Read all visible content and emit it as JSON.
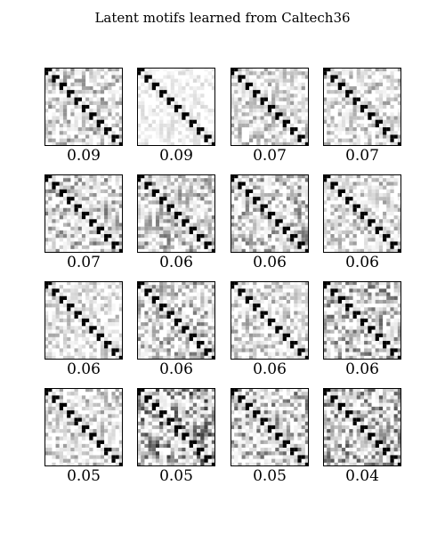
{
  "chart_data": {
    "type": "heatmap",
    "title": "Latent motifs learned from Caltech36",
    "n": 21,
    "colormap": "grayscale (white = 0, black = 1)",
    "grid": {
      "rows": 4,
      "cols": 4
    },
    "panel_values": [
      "0.09",
      "0.09",
      "0.07",
      "0.07",
      "0.07",
      "0.06",
      "0.06",
      "0.06",
      "0.06",
      "0.06",
      "0.06",
      "0.06",
      "0.05",
      "0.05",
      "0.05",
      "0.04"
    ],
    "panels": [
      {
        "value": "0.09",
        "offdiagonal": "near-diagonal band on sub/super diagonals, light",
        "density": 0.35
      },
      {
        "value": "0.09",
        "offdiagonal": "sparse very light gray background",
        "density": 0.12
      },
      {
        "value": "0.07",
        "offdiagonal": "dark cluster in lower-right",
        "density": 0.3
      },
      {
        "value": "0.07",
        "offdiagonal": "dark cluster upper-left and middle",
        "density": 0.3
      },
      {
        "value": "0.07",
        "offdiagonal": "dark blocks center-right",
        "density": 0.4
      },
      {
        "value": "0.06",
        "offdiagonal": "dark cluster upper-center",
        "density": 0.4
      },
      {
        "value": "0.06",
        "offdiagonal": "dark cluster upper-left",
        "density": 0.4
      },
      {
        "value": "0.06",
        "offdiagonal": "light scattered",
        "density": 0.3
      },
      {
        "value": "0.06",
        "offdiagonal": "light, dark block bottom-right",
        "density": 0.25
      },
      {
        "value": "0.06",
        "offdiagonal": "dark cluster center",
        "density": 0.4
      },
      {
        "value": "0.06",
        "offdiagonal": "dark spot center",
        "density": 0.3
      },
      {
        "value": "0.06",
        "offdiagonal": "dark edges top and bottom",
        "density": 0.45
      },
      {
        "value": "0.05",
        "offdiagonal": "light with dark mid-right",
        "density": 0.3
      },
      {
        "value": "0.05",
        "offdiagonal": "dense dark blocks",
        "density": 0.6
      },
      {
        "value": "0.05",
        "offdiagonal": "dark bottom rows",
        "density": 0.45
      },
      {
        "value": "0.04",
        "offdiagonal": "dark bottom row and right column",
        "density": 0.5
      }
    ]
  }
}
